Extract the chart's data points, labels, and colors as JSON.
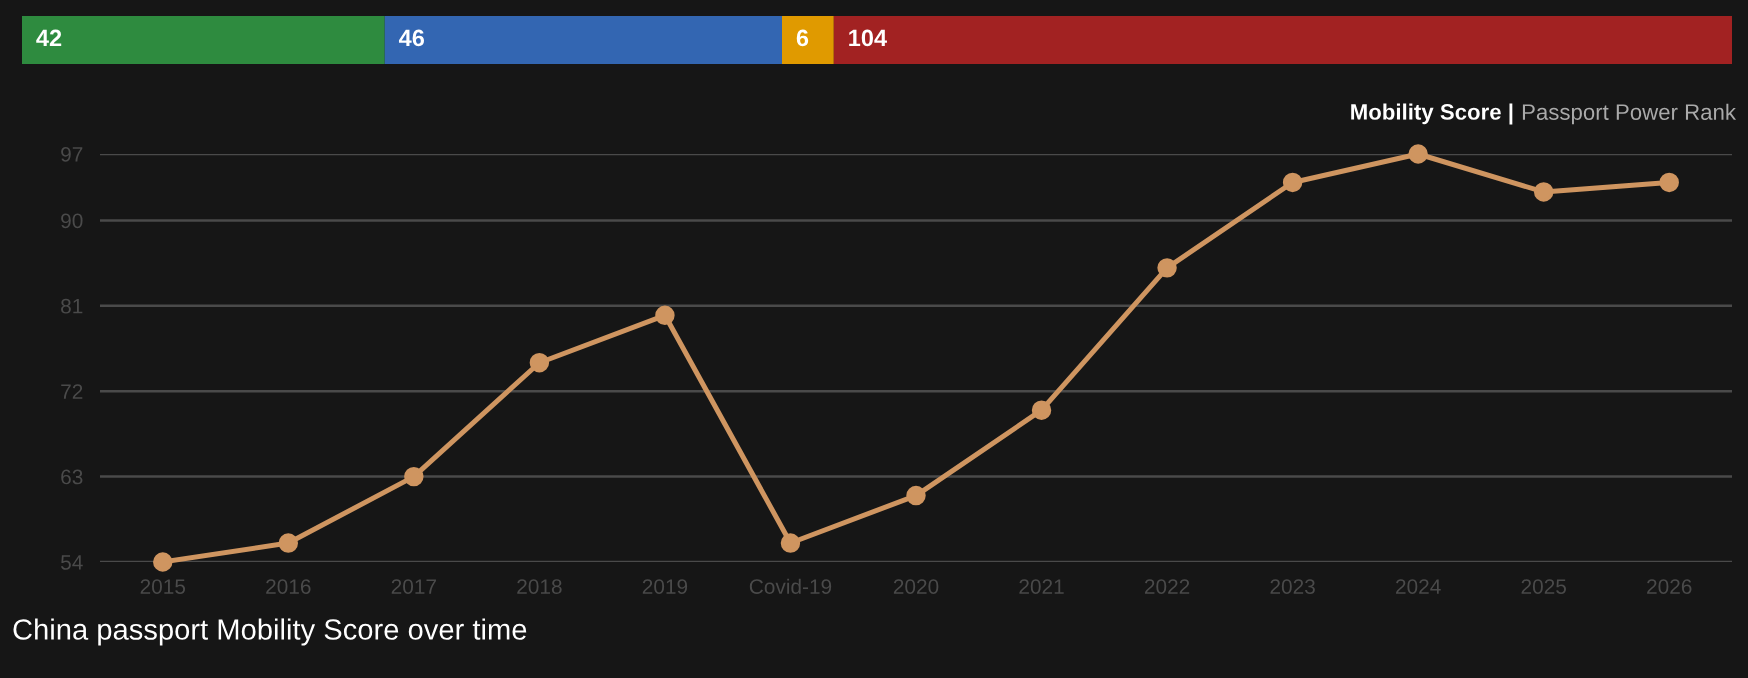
{
  "chart_data": [
    {
      "type": "bar",
      "orientation": "horizontal",
      "stacked": true,
      "categories": [
        null
      ],
      "data_labels": true,
      "tick_labels": false,
      "series": [
        {
          "color": "#2e8b3f",
          "values": [
            42
          ]
        },
        {
          "color": "#3366b2",
          "values": [
            46
          ]
        },
        {
          "color": "#e09a00",
          "values": [
            6
          ]
        },
        {
          "color": "#a22222",
          "values": [
            104
          ]
        }
      ]
    },
    {
      "type": "line",
      "title": "China passport Mobility Score over time",
      "annotations": [
        "Mobility Score |",
        "Passport Power Rank"
      ],
      "categories": [
        "2015",
        "2016",
        "2017",
        "2018",
        "2019",
        "Covid-19",
        "2020",
        "2021",
        "2022",
        "2023",
        "2024",
        "2025",
        "2026"
      ],
      "ylim": [
        54,
        97
      ],
      "yticks": [
        54,
        63,
        72,
        81,
        90,
        97
      ],
      "grid": "y",
      "marker": "circle",
      "line_style": "solid",
      "series": [
        {
          "color": "#cf9560",
          "values": [
            54,
            56,
            63,
            75,
            80,
            56,
            61,
            70,
            85,
            94,
            97,
            93,
            94
          ]
        }
      ]
    }
  ]
}
